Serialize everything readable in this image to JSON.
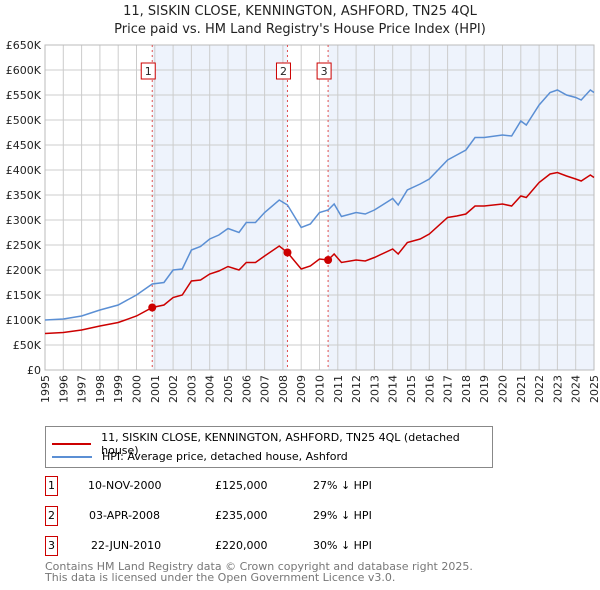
{
  "chart_data": {
    "type": "line",
    "title": "11, SISKIN CLOSE, KENNINGTON, ASHFORD, TN25 4QL",
    "subtitle": "Price paid vs. HM Land Registry's House Price Index (HPI)",
    "xlim": [
      1995,
      2025
    ],
    "ylim": [
      0,
      650000
    ],
    "y_ticks": [
      "£0",
      "£50K",
      "£100K",
      "£150K",
      "£200K",
      "£250K",
      "£300K",
      "£350K",
      "£400K",
      "£450K",
      "£500K",
      "£550K",
      "£600K",
      "£650K"
    ],
    "x_ticks": [
      "1995",
      "1996",
      "1997",
      "1998",
      "1999",
      "2000",
      "2001",
      "2002",
      "2003",
      "2004",
      "2005",
      "2006",
      "2007",
      "2008",
      "2009",
      "2010",
      "2011",
      "2012",
      "2013",
      "2014",
      "2015",
      "2016",
      "2017",
      "2018",
      "2019",
      "2020",
      "2021",
      "2022",
      "2023",
      "2024",
      "2025"
    ],
    "grid": true,
    "series": [
      {
        "name": "11, SISKIN CLOSE, KENNINGTON, ASHFORD, TN25 4QL (detached house)",
        "color": "#cc0000",
        "x": [
          1995,
          1996,
          1997,
          1998,
          1999,
          2000,
          2000.86,
          2001.5,
          2002,
          2002.5,
          2003,
          2003.5,
          2004,
          2004.5,
          2005,
          2005.6,
          2006,
          2006.5,
          2007,
          2007.8,
          2008.25,
          2009,
          2009.5,
          2010,
          2010.47,
          2010.8,
          2011.2,
          2012,
          2012.5,
          2013,
          2014,
          2014.3,
          2014.8,
          2015.5,
          2016,
          2017,
          2017.5,
          2018,
          2018.5,
          2019,
          2020,
          2020.5,
          2021,
          2021.3,
          2022,
          2022.6,
          2023,
          2023.5,
          2024,
          2024.3,
          2024.8,
          2025
        ],
        "y": [
          73000,
          75000,
          80000,
          88000,
          95000,
          108000,
          125000,
          130000,
          145000,
          150000,
          178000,
          180000,
          192000,
          198000,
          207000,
          200000,
          215000,
          215000,
          228000,
          248000,
          235000,
          202000,
          208000,
          222000,
          220000,
          232000,
          215000,
          220000,
          218000,
          225000,
          242000,
          232000,
          255000,
          262000,
          272000,
          305000,
          308000,
          312000,
          328000,
          328000,
          332000,
          328000,
          348000,
          345000,
          375000,
          392000,
          395000,
          388000,
          382000,
          378000,
          390000,
          385000
        ]
      },
      {
        "name": "HPI: Average price, detached house, Ashford",
        "color": "#5b8fd4",
        "x": [
          1995,
          1996,
          1997,
          1998,
          1999,
          2000,
          2000.86,
          2001.5,
          2002,
          2002.5,
          2003,
          2003.5,
          2004,
          2004.5,
          2005,
          2005.6,
          2006,
          2006.5,
          2007,
          2007.8,
          2008.25,
          2009,
          2009.5,
          2010,
          2010.47,
          2010.8,
          2011.2,
          2012,
          2012.5,
          2013,
          2014,
          2014.3,
          2014.8,
          2015.5,
          2016,
          2017,
          2017.5,
          2018,
          2018.5,
          2019,
          2020,
          2020.5,
          2021,
          2021.3,
          2022,
          2022.6,
          2023,
          2023.5,
          2024,
          2024.3,
          2024.8,
          2025
        ],
        "y": [
          100000,
          102000,
          108000,
          120000,
          130000,
          150000,
          172000,
          175000,
          200000,
          202000,
          240000,
          247000,
          262000,
          270000,
          283000,
          275000,
          295000,
          295000,
          315000,
          340000,
          330000,
          285000,
          292000,
          315000,
          320000,
          332000,
          307000,
          315000,
          312000,
          320000,
          343000,
          330000,
          360000,
          372000,
          382000,
          420000,
          430000,
          440000,
          465000,
          465000,
          470000,
          468000,
          498000,
          490000,
          530000,
          555000,
          560000,
          550000,
          545000,
          540000,
          560000,
          555000
        ]
      }
    ],
    "sales": [
      {
        "label": "1",
        "date": "10-NOV-2000",
        "x": 2000.86,
        "price": "£125,000",
        "value": 125000,
        "hpi": "27% ↓ HPI"
      },
      {
        "label": "2",
        "date": "03-APR-2008",
        "x": 2008.25,
        "price": "£235,000",
        "value": 235000,
        "hpi": "29% ↓ HPI"
      },
      {
        "label": "3",
        "date": "22-JUN-2010",
        "x": 2010.47,
        "price": "£220,000",
        "value": 220000,
        "hpi": "30% ↓ HPI"
      }
    ]
  },
  "footer": [
    "Contains HM Land Registry data © Crown copyright and database right 2025.",
    "This data is licensed under the Open Government Licence v3.0."
  ]
}
